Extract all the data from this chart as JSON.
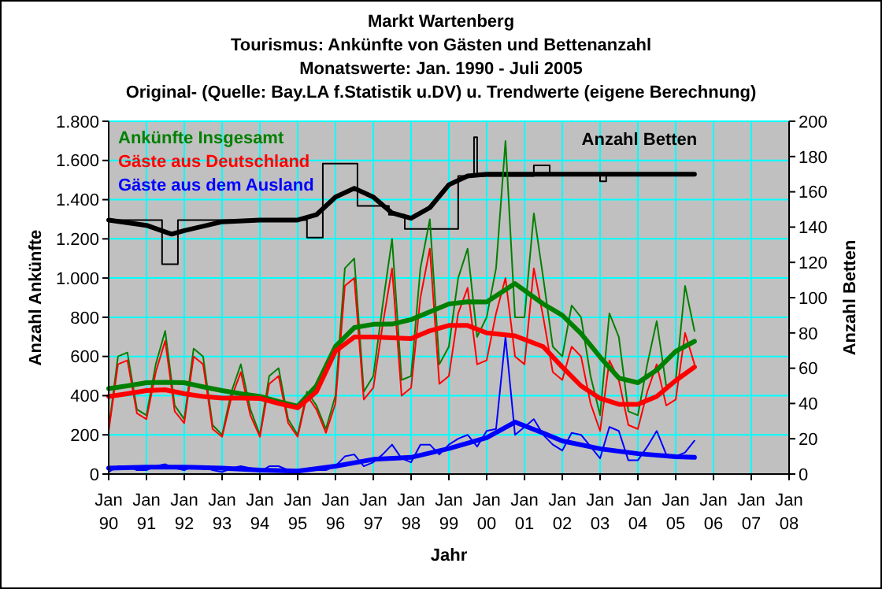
{
  "chart_data": {
    "type": "line",
    "title": "Markt Wartenberg",
    "subtitle": "Tourismus: Ankünfte von Gästen und Bettenanzahl",
    "annotations": [
      "Monatswerte: Jan. 1990 - Juli 2005",
      "Original- (Quelle: Bay.LA f.Statistik u.DV) u. Trendwerte (eigene Berechnung)"
    ],
    "xlabel": "Jahr",
    "ylabel": "Anzahl Ankünfte",
    "y2label": "Anzahl Betten",
    "x": [
      "1990-01",
      "1990-04",
      "1990-07",
      "1990-10",
      "1991-01",
      "1991-04",
      "1991-07",
      "1991-10",
      "1992-01",
      "1992-04",
      "1992-07",
      "1992-10",
      "1993-01",
      "1993-04",
      "1993-07",
      "1993-10",
      "1994-01",
      "1994-04",
      "1994-07",
      "1994-10",
      "1995-01",
      "1995-04",
      "1995-07",
      "1995-10",
      "1996-01",
      "1996-04",
      "1996-07",
      "1996-10",
      "1997-01",
      "1997-04",
      "1997-07",
      "1997-10",
      "1998-01",
      "1998-04",
      "1998-07",
      "1998-10",
      "1999-01",
      "1999-04",
      "1999-07",
      "1999-10",
      "2000-01",
      "2000-04",
      "2000-07",
      "2000-10",
      "2001-01",
      "2001-04",
      "2001-07",
      "2001-10",
      "2002-01",
      "2002-04",
      "2002-07",
      "2002-10",
      "2003-01",
      "2003-04",
      "2003-07",
      "2003-10",
      "2004-01",
      "2004-04",
      "2004-07",
      "2004-10",
      "2005-01",
      "2005-04",
      "2005-07"
    ],
    "series": [
      {
        "name": "Anzahl Betten",
        "type": "step",
        "axis": "y2",
        "color": "#000000",
        "x": [
          "1990-01",
          "1991-06",
          "1991-11",
          "1995-04",
          "1995-09",
          "1996-08",
          "1997-06",
          "1997-11",
          "1999-04",
          "1999-09",
          "1999-10",
          "2001-04",
          "2001-09",
          "2003-01",
          "2003-03",
          "2005-07"
        ],
        "values": [
          144,
          119,
          144,
          134,
          176,
          152,
          147,
          139,
          169,
          191,
          169,
          175,
          170,
          166,
          170,
          170
        ]
      },
      {
        "axis": "y2",
        "color": "#000000",
        "x": [
          "1990-01",
          "1991-01",
          "1991-09",
          "1992-01",
          "1993-01",
          "1994-01",
          "1995-01",
          "1995-07",
          "1996-01",
          "1996-07",
          "1997-01",
          "1997-07",
          "1998-01",
          "1998-07",
          "1999-01",
          "1999-07",
          "2000-01",
          "2005-07"
        ],
        "values": [
          144,
          141,
          136,
          138,
          143,
          144,
          144,
          147,
          157,
          162,
          157,
          148,
          145,
          151,
          164,
          169,
          170,
          170
        ]
      },
      {
        "name": "Ankünfte Insgesamt",
        "color": "#008000",
        "values": [
          230,
          600,
          620,
          330,
          300,
          560,
          730,
          350,
          280,
          640,
          600,
          250,
          200,
          420,
          560,
          330,
          200,
          500,
          540,
          280,
          200,
          420,
          350,
          230,
          400,
          1050,
          1100,
          420,
          500,
          860,
          1200,
          480,
          500,
          1050,
          1300,
          560,
          650,
          1000,
          1150,
          700,
          800,
          1050,
          1700,
          800,
          800,
          1330,
          1000,
          650,
          600,
          860,
          800,
          500,
          300,
          820,
          700,
          320,
          300,
          560,
          780,
          450,
          480,
          960,
          730
        ]
      },
      {
        "name": "Gäste aus Deutschland",
        "color": "#ff0000",
        "values": [
          220,
          560,
          580,
          310,
          280,
          520,
          680,
          320,
          260,
          600,
          560,
          230,
          190,
          390,
          520,
          300,
          190,
          460,
          500,
          260,
          190,
          400,
          330,
          210,
          360,
          960,
          1000,
          380,
          440,
          760,
          1050,
          400,
          440,
          900,
          1150,
          460,
          500,
          820,
          950,
          560,
          580,
          820,
          1000,
          600,
          560,
          1050,
          800,
          520,
          480,
          650,
          600,
          360,
          220,
          580,
          480,
          250,
          230,
          420,
          560,
          350,
          380,
          720,
          560
        ]
      },
      {
        "name": "Gäste aus dem Ausland",
        "color": "#0000ff",
        "values": [
          10,
          40,
          40,
          20,
          20,
          40,
          50,
          30,
          20,
          40,
          40,
          20,
          10,
          30,
          40,
          30,
          10,
          40,
          40,
          20,
          10,
          20,
          20,
          20,
          40,
          90,
          100,
          40,
          60,
          100,
          150,
          80,
          60,
          150,
          150,
          100,
          150,
          180,
          200,
          140,
          220,
          230,
          700,
          200,
          240,
          280,
          200,
          150,
          120,
          210,
          200,
          140,
          80,
          240,
          220,
          70,
          70,
          140,
          220,
          100,
          90,
          110,
          170
        ]
      },
      {
        "color": "#008000",
        "x": [
          "1990-01",
          "1990-07",
          "1991-01",
          "1991-07",
          "1992-01",
          "1992-07",
          "1993-01",
          "1993-07",
          "1994-01",
          "1994-07",
          "1995-01",
          "1995-07",
          "1996-01",
          "1996-07",
          "1997-01",
          "1997-07",
          "1998-01",
          "1998-07",
          "1999-01",
          "1999-07",
          "2000-01",
          "2000-10",
          "2001-07",
          "2002-01",
          "2002-07",
          "2003-01",
          "2003-07",
          "2004-01",
          "2004-07",
          "2005-01",
          "2005-07"
        ],
        "values": [
          436,
          450,
          466,
          468,
          466,
          445,
          426,
          410,
          396,
          370,
          346,
          450,
          651,
          747,
          764,
          765,
          788,
          828,
          868,
          879,
          878,
          972,
          868,
          810,
          717,
          597,
          490,
          466,
          530,
          626,
          677
        ]
      },
      {
        "color": "#ff0000",
        "x": [
          "1990-01",
          "1990-07",
          "1991-01",
          "1991-07",
          "1992-01",
          "1992-07",
          "1993-01",
          "1993-07",
          "1994-01",
          "1994-07",
          "1995-01",
          "1995-07",
          "1996-01",
          "1996-07",
          "1997-01",
          "1997-07",
          "1998-01",
          "1998-07",
          "1999-01",
          "1999-07",
          "2000-01",
          "2000-10",
          "2001-07",
          "2002-01",
          "2002-07",
          "2003-01",
          "2003-07",
          "2004-01",
          "2004-07",
          "2005-01",
          "2005-07"
        ],
        "values": [
          396,
          410,
          426,
          430,
          410,
          396,
          388,
          388,
          386,
          360,
          338,
          420,
          627,
          699,
          699,
          695,
          691,
          731,
          758,
          758,
          720,
          705,
          650,
          546,
          450,
          386,
          356,
          356,
          396,
          477,
          546
        ]
      },
      {
        "color": "#0000ff",
        "x": [
          "1990-01",
          "1991-01",
          "1992-01",
          "1993-01",
          "1994-01",
          "1995-01",
          "1996-01",
          "1997-01",
          "1998-01",
          "1999-01",
          "2000-01",
          "2000-10",
          "2001-07",
          "2002-01",
          "2003-01",
          "2004-01",
          "2005-01",
          "2005-07"
        ],
        "values": [
          30,
          35,
          35,
          30,
          20,
          15,
          40,
          75,
          85,
          130,
          185,
          265,
          209,
          169,
          129,
          104,
          88,
          85
        ]
      }
    ],
    "xlim": [
      "1990-01",
      "2008-01"
    ],
    "xticks": [
      {
        "value": "1990-01",
        "label": "Jan 90"
      },
      {
        "value": "1991-01",
        "label": "Jan 91"
      },
      {
        "value": "1992-01",
        "label": "Jan 92"
      },
      {
        "value": "1993-01",
        "label": "Jan 93"
      },
      {
        "value": "1994-01",
        "label": "Jan 94"
      },
      {
        "value": "1995-01",
        "label": "Jan 95"
      },
      {
        "value": "1996-01",
        "label": "Jan 96"
      },
      {
        "value": "1997-01",
        "label": "Jan 97"
      },
      {
        "value": "1998-01",
        "label": "Jan 98"
      },
      {
        "value": "1999-01",
        "label": "Jan 99"
      },
      {
        "value": "2000-01",
        "label": "Jan 00"
      },
      {
        "value": "2001-01",
        "label": "Jan 01"
      },
      {
        "value": "2002-01",
        "label": "Jan 02"
      },
      {
        "value": "2003-01",
        "label": "Jan 03"
      },
      {
        "value": "2004-01",
        "label": "Jan 04"
      },
      {
        "value": "2005-01",
        "label": "Jan 05"
      },
      {
        "value": "2006-01",
        "label": "Jan 06"
      },
      {
        "value": "2007-01",
        "label": "Jan 07"
      },
      {
        "value": "2008-01",
        "label": "Jan 08"
      }
    ],
    "ylim": [
      0,
      1800
    ],
    "yticks": [
      0,
      200,
      400,
      600,
      800,
      {
        "value": 1000,
        "label": "1.000"
      },
      {
        "value": 1200,
        "label": "1.200"
      },
      {
        "value": 1400,
        "label": "1.400"
      },
      {
        "value": 1600,
        "label": "1.600"
      },
      {
        "value": 1800,
        "label": "1.800"
      }
    ],
    "y2lim": [
      0,
      200
    ],
    "y2ticks": [
      0,
      20,
      40,
      60,
      80,
      100,
      120,
      140,
      160,
      180,
      200
    ],
    "grid": true,
    "legend": "top left"
  }
}
